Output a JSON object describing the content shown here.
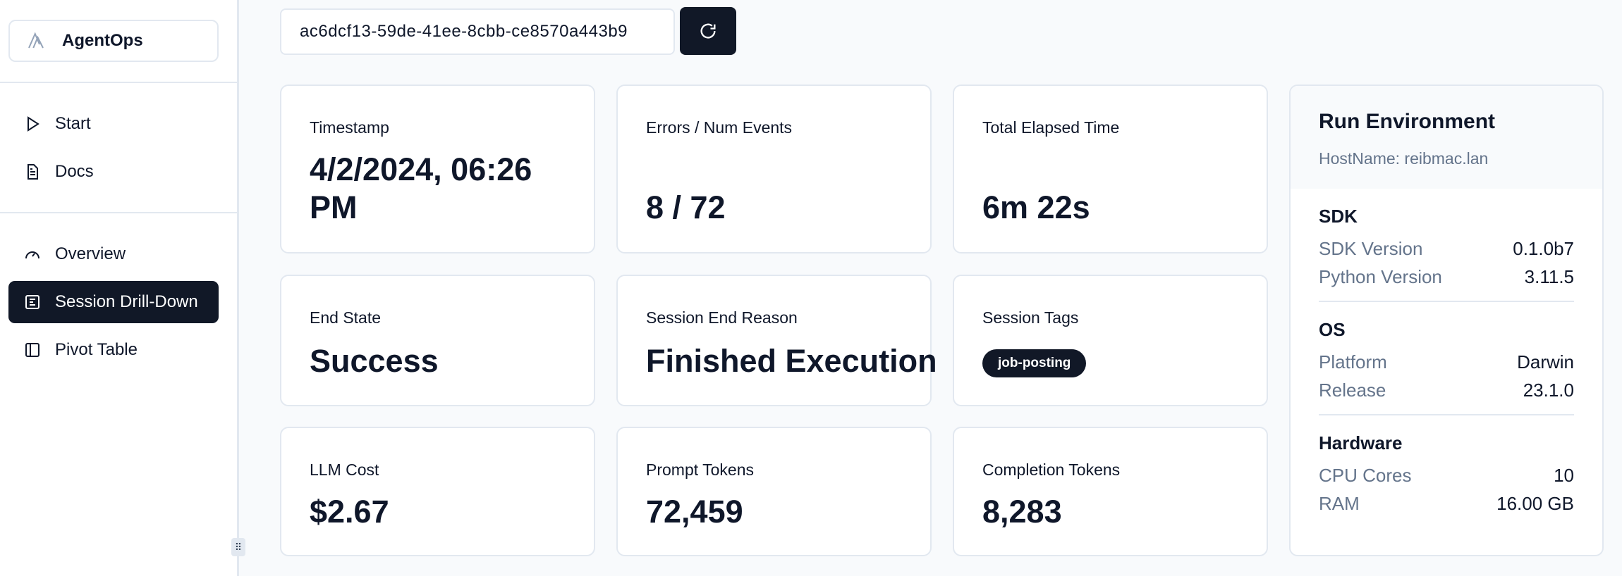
{
  "sidebar": {
    "logo": "AgentOps",
    "items": [
      {
        "label": "Start",
        "icon": "play-icon"
      },
      {
        "label": "Docs",
        "icon": "document-icon"
      },
      {
        "label": "Overview",
        "icon": "gauge-icon"
      },
      {
        "label": "Session Drill-Down",
        "icon": "list-icon",
        "active": true
      },
      {
        "label": "Pivot Table",
        "icon": "panel-icon"
      }
    ]
  },
  "session_id": "ac6dcf13-59de-41ee-8cbb-ce8570a443b9",
  "cards": {
    "timestamp": {
      "label": "Timestamp",
      "value": "4/2/2024, 06:26 PM"
    },
    "errors": {
      "label": "Errors / Num Events",
      "value": "8 / 72"
    },
    "elapsed": {
      "label": "Total Elapsed Time",
      "value": "6m 22s"
    },
    "end_state": {
      "label": "End State",
      "value": "Success"
    },
    "end_reason": {
      "label": "Session End Reason",
      "value": "Finished Execution"
    },
    "tags": {
      "label": "Session Tags",
      "values": [
        "job-posting"
      ]
    },
    "cost": {
      "label": "LLM Cost",
      "value": "$2.67"
    },
    "prompt": {
      "label": "Prompt Tokens",
      "value": "72,459"
    },
    "completion": {
      "label": "Completion Tokens",
      "value": "8,283"
    }
  },
  "env": {
    "title": "Run Environment",
    "host": "HostName: reibmac.lan",
    "sdk": {
      "heading": "SDK",
      "rows": [
        {
          "k": "SDK Version",
          "v": "0.1.0b7"
        },
        {
          "k": "Python Version",
          "v": "3.11.5"
        }
      ]
    },
    "os": {
      "heading": "OS",
      "rows": [
        {
          "k": "Platform",
          "v": "Darwin"
        },
        {
          "k": "Release",
          "v": "23.1.0"
        }
      ]
    },
    "hw": {
      "heading": "Hardware",
      "rows": [
        {
          "k": "CPU Cores",
          "v": "10"
        },
        {
          "k": "RAM",
          "v": "16.00 GB"
        }
      ]
    }
  }
}
